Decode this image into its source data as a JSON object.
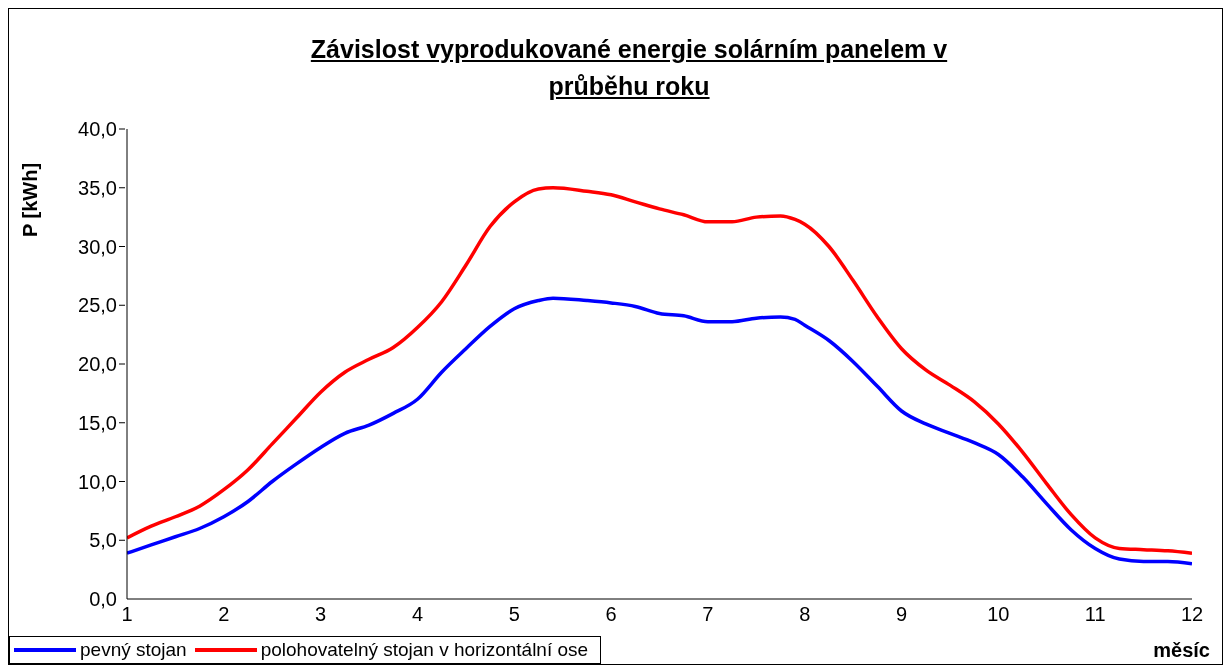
{
  "chart_data": {
    "type": "line",
    "title": "Závislost vyprodukované energie solárním panelem v průběhu roku",
    "xlabel": "měsíc",
    "ylabel": "P [kWh]",
    "xlim": [
      1,
      12
    ],
    "xticks": [
      1,
      2,
      3,
      4,
      5,
      6,
      7,
      8,
      9,
      10,
      11,
      12
    ],
    "ylim": [
      0,
      40
    ],
    "yticks": [
      {
        "value": 0,
        "label": "0,0"
      },
      {
        "value": 5,
        "label": "5,0"
      },
      {
        "value": 10,
        "label": "10,0"
      },
      {
        "value": 15,
        "label": "15,0"
      },
      {
        "value": 20,
        "label": "20,0"
      },
      {
        "value": 25,
        "label": "25,0"
      },
      {
        "value": 30,
        "label": "30,0"
      },
      {
        "value": 35,
        "label": "35,0"
      },
      {
        "value": 40,
        "label": "40,0"
      }
    ],
    "x": [
      1,
      1.25,
      1.5,
      1.75,
      2,
      2.25,
      2.5,
      2.75,
      3,
      3.25,
      3.5,
      3.75,
      4,
      4.25,
      4.5,
      4.75,
      5,
      5.25,
      5.4,
      5.75,
      6,
      6.25,
      6.5,
      6.75,
      7,
      7.25,
      7.5,
      7.75,
      7.9,
      8,
      8.25,
      8.5,
      8.75,
      9,
      9.25,
      9.5,
      9.75,
      10,
      10.25,
      10.5,
      10.75,
      11,
      11.25,
      11.5,
      11.75,
      12
    ],
    "series": [
      {
        "name": "pevný stojan",
        "color": "#0000ff",
        "values": [
          3.9,
          4.6,
          5.3,
          6.0,
          7.0,
          8.3,
          10.0,
          11.5,
          12.9,
          14.1,
          14.8,
          15.8,
          17.0,
          19.3,
          21.3,
          23.2,
          24.7,
          25.4,
          25.6,
          25.4,
          25.2,
          24.9,
          24.3,
          24.1,
          23.6,
          23.6,
          23.9,
          24.0,
          23.8,
          23.3,
          22.0,
          20.2,
          18.1,
          16.0,
          14.9,
          14.1,
          13.3,
          12.3,
          10.4,
          8.1,
          5.9,
          4.3,
          3.4,
          3.2,
          3.2,
          3.0
        ]
      },
      {
        "name": "polohovatelný stojan v horizontální ose",
        "color": "#ff0000",
        "values": [
          5.2,
          6.2,
          7.0,
          7.9,
          9.3,
          11.0,
          13.2,
          15.4,
          17.6,
          19.3,
          20.4,
          21.4,
          23.1,
          25.3,
          28.4,
          31.7,
          33.8,
          34.9,
          35.0,
          34.7,
          34.4,
          33.8,
          33.2,
          32.7,
          32.1,
          32.1,
          32.5,
          32.6,
          32.3,
          31.9,
          30.0,
          27.1,
          24.0,
          21.3,
          19.5,
          18.2,
          16.8,
          14.9,
          12.5,
          9.8,
          7.2,
          5.2,
          4.3,
          4.2,
          4.1,
          3.9
        ]
      }
    ],
    "grid": false,
    "legend": "bottom left",
    "marker": "none",
    "line_style": "solid"
  }
}
